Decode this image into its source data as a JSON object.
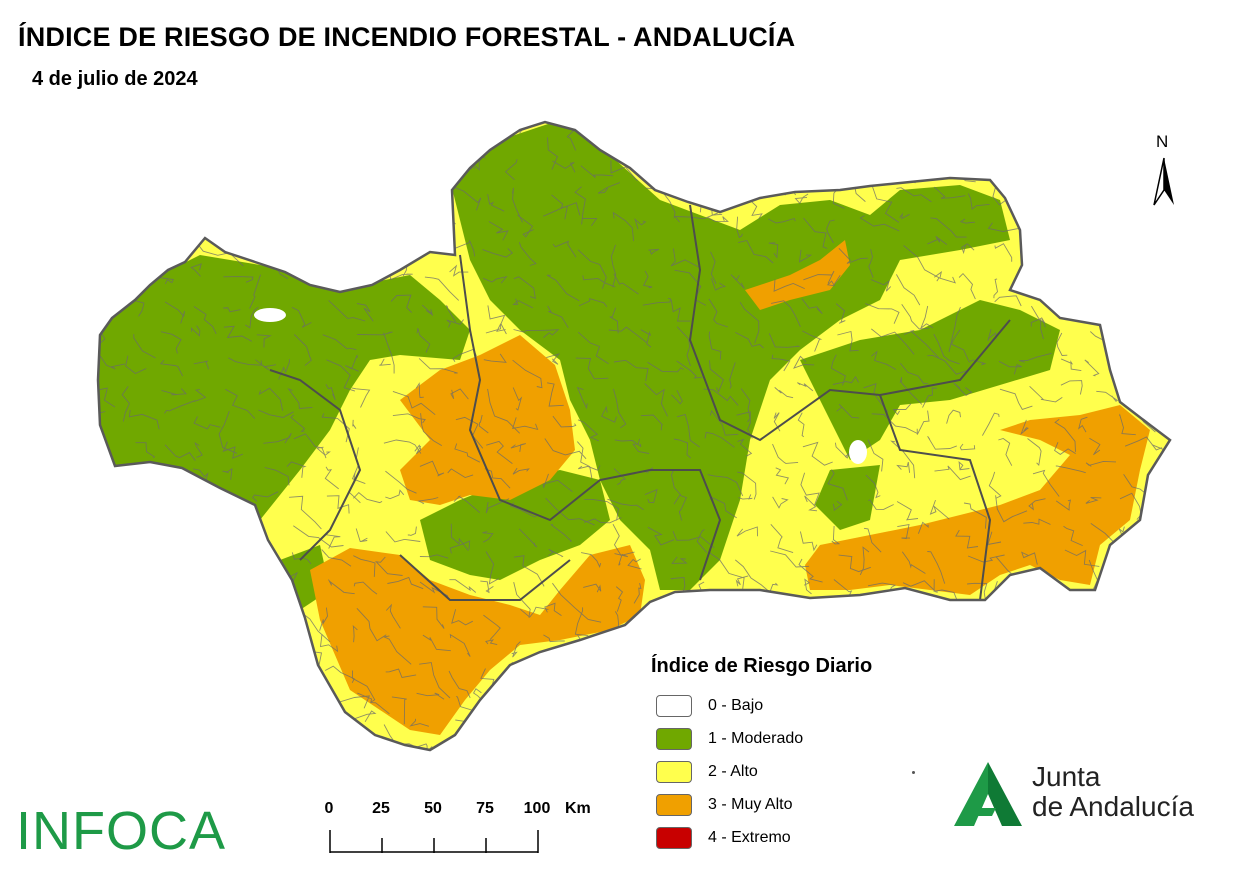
{
  "header": {
    "title": "ÍNDICE DE RIESGO DE INCENDIO FORESTAL - ANDALUCÍA",
    "date": "4 de julio de 2024"
  },
  "north_arrow": {
    "label": "N"
  },
  "legend": {
    "title": "Índice de Riesgo Diario",
    "items": [
      {
        "label": "0 - Bajo",
        "color": "#ffffff"
      },
      {
        "label": "1 - Moderado",
        "color": "#70a800"
      },
      {
        "label": "2 - Alto",
        "color": "#ffff4d"
      },
      {
        "label": "3 - Muy Alto",
        "color": "#f0a000"
      },
      {
        "label": "4 - Extremo",
        "color": "#c80000"
      }
    ]
  },
  "scale_bar": {
    "ticks": [
      "0",
      "25",
      "50",
      "75",
      "100"
    ],
    "unit": "Km"
  },
  "logos": {
    "infoca": "INFOCA",
    "junta_line1": "Junta",
    "junta_line2": "de Andalucía"
  },
  "colors": {
    "moderado": "#70a800",
    "alto": "#ffff4d",
    "muy_alto": "#f0a000",
    "border": "#555555",
    "brand_green": "#1e9a47"
  }
}
